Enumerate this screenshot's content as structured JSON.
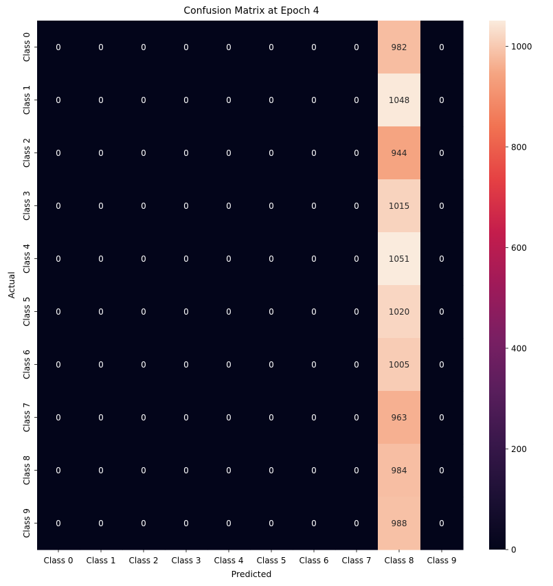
{
  "chart_data": {
    "type": "heatmap",
    "title": "Confusion Matrix at Epoch 4",
    "xlabel": "Predicted",
    "ylabel": "Actual",
    "x_categories": [
      "Class 0",
      "Class 1",
      "Class 2",
      "Class 3",
      "Class 4",
      "Class 5",
      "Class 6",
      "Class 7",
      "Class 8",
      "Class 9"
    ],
    "y_categories": [
      "Class 0",
      "Class 1",
      "Class 2",
      "Class 3",
      "Class 4",
      "Class 5",
      "Class 6",
      "Class 7",
      "Class 8",
      "Class 9"
    ],
    "values": [
      [
        0,
        0,
        0,
        0,
        0,
        0,
        0,
        0,
        982,
        0
      ],
      [
        0,
        0,
        0,
        0,
        0,
        0,
        0,
        0,
        1048,
        0
      ],
      [
        0,
        0,
        0,
        0,
        0,
        0,
        0,
        0,
        944,
        0
      ],
      [
        0,
        0,
        0,
        0,
        0,
        0,
        0,
        0,
        1015,
        0
      ],
      [
        0,
        0,
        0,
        0,
        0,
        0,
        0,
        0,
        1051,
        0
      ],
      [
        0,
        0,
        0,
        0,
        0,
        0,
        0,
        0,
        1020,
        0
      ],
      [
        0,
        0,
        0,
        0,
        0,
        0,
        0,
        0,
        1005,
        0
      ],
      [
        0,
        0,
        0,
        0,
        0,
        0,
        0,
        0,
        963,
        0
      ],
      [
        0,
        0,
        0,
        0,
        0,
        0,
        0,
        0,
        984,
        0
      ],
      [
        0,
        0,
        0,
        0,
        0,
        0,
        0,
        0,
        988,
        0
      ]
    ],
    "value_range": [
      0,
      1051
    ],
    "colormap": "rocket",
    "colorbar": {
      "ticks": [
        0,
        200,
        400,
        600,
        800,
        1000
      ],
      "tick_labels": [
        "0",
        "200",
        "400",
        "600",
        "800",
        "1000"
      ]
    },
    "annotations": true,
    "grid": false
  }
}
